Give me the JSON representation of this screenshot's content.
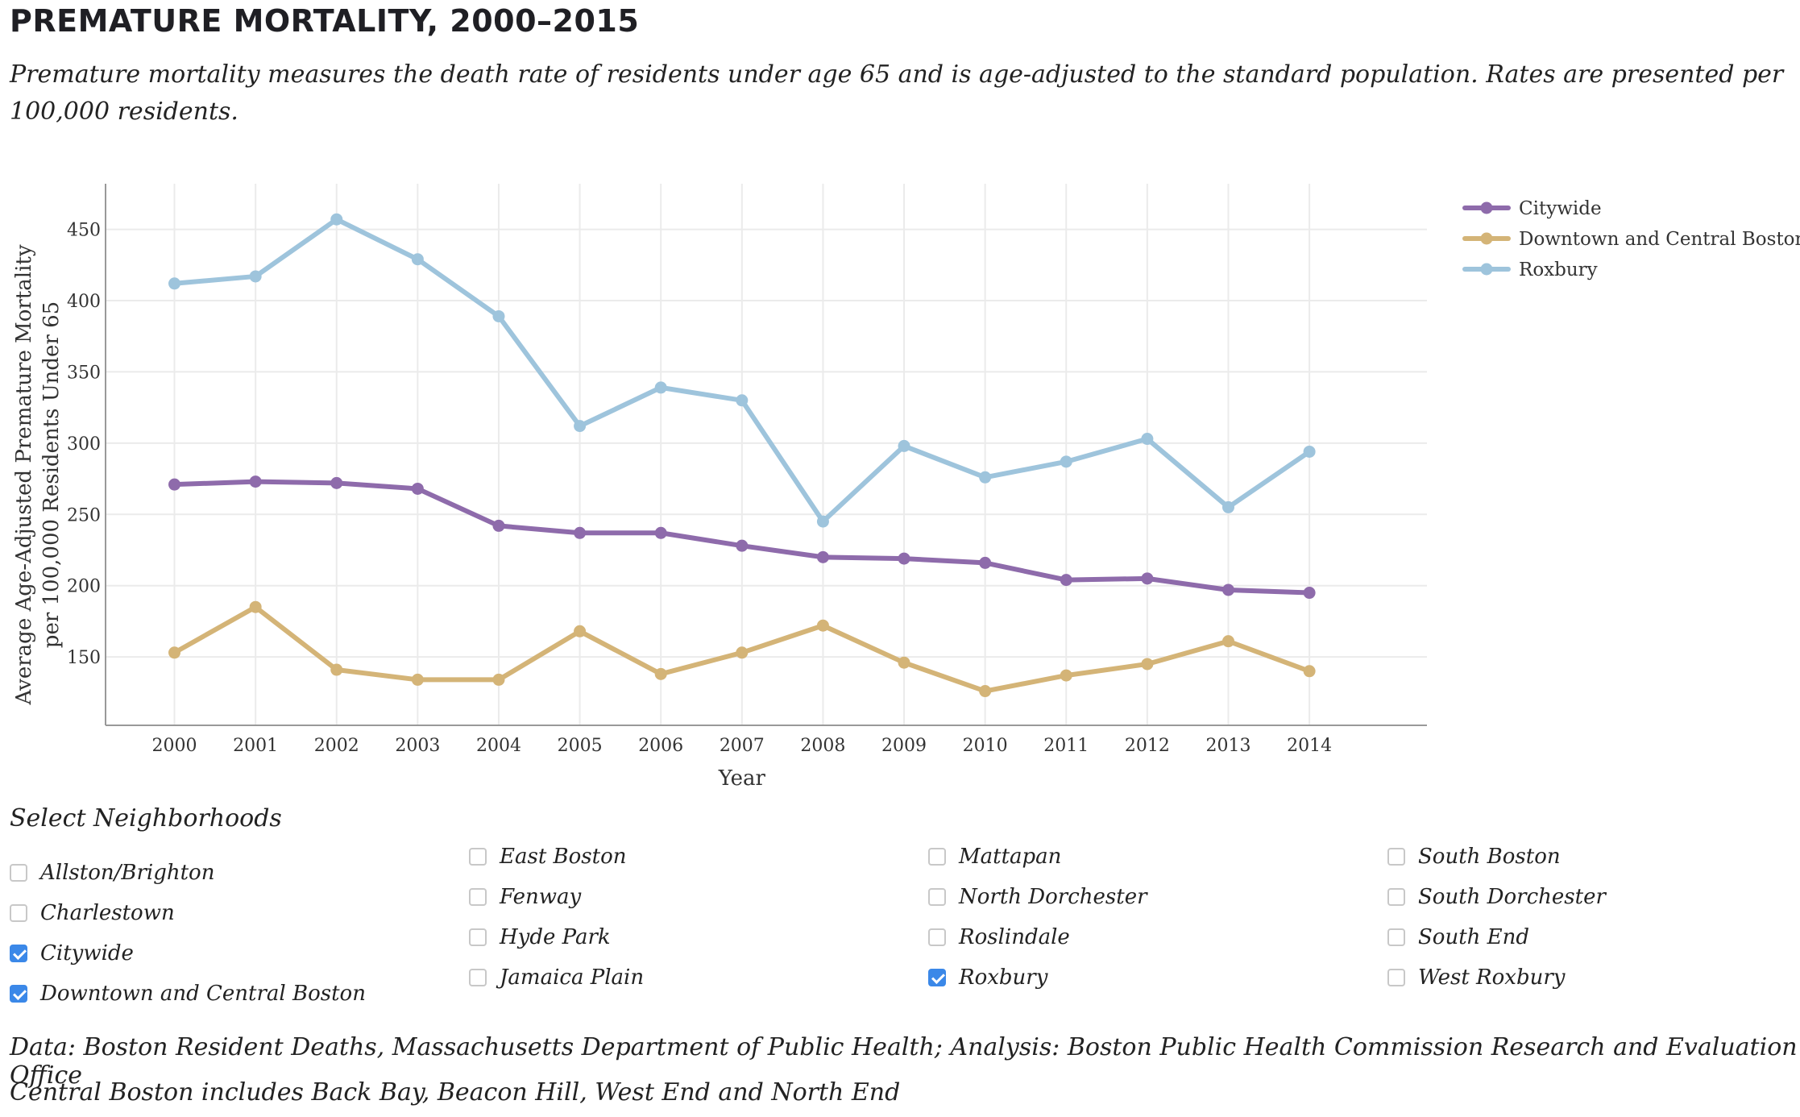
{
  "header": {
    "title": "PREMATURE MORTALITY, 2000–2015",
    "subtitle": "Premature mortality measures the death rate of residents under age 65 and is age-adjusted to the standard population. Rates are presented per 100,000 residents."
  },
  "chart_data": {
    "type": "line",
    "xlabel": "Year",
    "ylabel": [
      "Average Age-Adjusted Premature Mortality",
      "per 100,000 Residents Under 65"
    ],
    "x": [
      2000,
      2001,
      2002,
      2003,
      2004,
      2005,
      2006,
      2007,
      2008,
      2009,
      2010,
      2011,
      2012,
      2013,
      2014
    ],
    "xlim": [
      1999.15,
      2015.45
    ],
    "ylim": [
      102,
      482
    ],
    "yticks": [
      150,
      200,
      250,
      300,
      350,
      400,
      450
    ],
    "grid": true,
    "legend": "top-right",
    "series": [
      {
        "name": "Citywide",
        "color": "#8e6bab",
        "values": [
          271,
          273,
          272,
          268,
          242,
          237,
          237,
          228,
          220,
          219,
          216,
          204,
          205,
          197,
          195
        ]
      },
      {
        "name": "Downtown and Central Boston",
        "color": "#d4b477",
        "values": [
          153,
          185,
          141,
          134,
          134,
          168,
          138,
          153,
          172,
          146,
          126,
          137,
          145,
          161,
          140
        ]
      },
      {
        "name": "Roxbury",
        "color": "#9ec4dc",
        "values": [
          412,
          417,
          457,
          429,
          389,
          312,
          339,
          330,
          245,
          298,
          276,
          287,
          303,
          255,
          294
        ]
      }
    ]
  },
  "selector": {
    "title": "Select Neighborhoods",
    "columns": [
      [
        {
          "label": "Allston/Brighton",
          "checked": false
        },
        {
          "label": "Charlestown",
          "checked": false
        },
        {
          "label": "Citywide",
          "checked": true
        },
        {
          "label": "Downtown and Central Boston",
          "checked": true
        }
      ],
      [
        {
          "label": "East Boston",
          "checked": false
        },
        {
          "label": "Fenway",
          "checked": false
        },
        {
          "label": "Hyde Park",
          "checked": false
        },
        {
          "label": "Jamaica Plain",
          "checked": false
        }
      ],
      [
        {
          "label": "Mattapan",
          "checked": false
        },
        {
          "label": "North Dorchester",
          "checked": false
        },
        {
          "label": "Roslindale",
          "checked": false
        },
        {
          "label": "Roxbury",
          "checked": true
        }
      ],
      [
        {
          "label": "South Boston",
          "checked": false
        },
        {
          "label": "South Dorchester",
          "checked": false
        },
        {
          "label": "South End",
          "checked": false
        },
        {
          "label": "West Roxbury",
          "checked": false
        }
      ]
    ]
  },
  "footer": {
    "source": "Data: Boston Resident Deaths, Massachusetts Department of Public Health; Analysis: Boston Public Health Commission Research and Evaluation Office",
    "note": "Central Boston includes Back Bay, Beacon Hill, West End and North End"
  }
}
